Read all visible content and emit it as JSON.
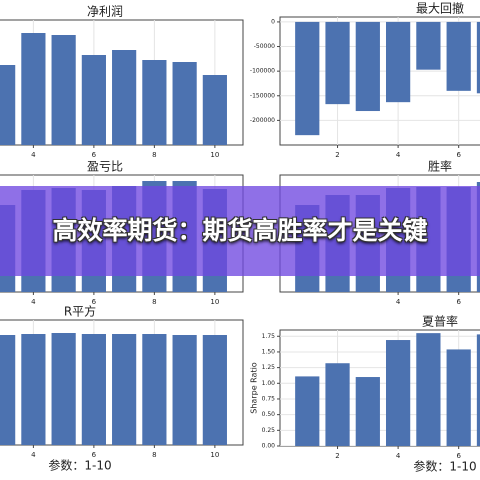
{
  "banner": "高效率期货：期货高胜率才是关键",
  "chart_data": [
    {
      "type": "bar",
      "title": "净利润",
      "x": [
        3,
        4,
        5,
        6,
        7,
        8,
        9,
        10
      ],
      "values": [
        80,
        112,
        110,
        90,
        95,
        85,
        83,
        70
      ],
      "color": "#4c72b0",
      "xlim": [
        2.83,
        10.93
      ],
      "ylim": [
        0,
        125
      ],
      "xticks": [
        4,
        6,
        8,
        10
      ]
    },
    {
      "type": "bar",
      "title": "最大回撤",
      "x": [
        1,
        2,
        3,
        4,
        5,
        6,
        7
      ],
      "values": [
        -230000,
        -167000,
        -181000,
        -163000,
        -97000,
        -140000,
        -145000
      ],
      "color": "#4c72b0",
      "xlim": [
        0.1,
        6.77
      ],
      "ylim": [
        -250000,
        10000
      ],
      "xticks": [
        2,
        4,
        6
      ],
      "yticks": [
        0,
        -50000,
        -100000,
        -150000,
        -200000
      ]
    },
    {
      "type": "bar",
      "title": "盈亏比",
      "x": [
        3,
        4,
        5,
        6,
        7,
        8,
        9,
        10
      ],
      "values": [
        87,
        102,
        104,
        102,
        106,
        111,
        111,
        103
      ],
      "color": "#4c72b0",
      "xlim": [
        2.83,
        10.93
      ],
      "ylim": [
        0,
        117
      ],
      "xticks": [
        4,
        6,
        8,
        10
      ]
    },
    {
      "type": "bar",
      "title": "胜率",
      "x": [
        1,
        2,
        3,
        4,
        5,
        6,
        7
      ],
      "values": [
        87,
        97,
        97,
        104,
        105,
        105,
        110
      ],
      "color": "#4c72b0",
      "xlim": [
        0.1,
        6.77
      ],
      "ylim": [
        0,
        117
      ],
      "xticks": [
        4,
        6
      ]
    },
    {
      "type": "bar",
      "title": "R平方",
      "x": [
        3,
        4,
        5,
        6,
        7,
        8,
        9,
        10
      ],
      "values": [
        110,
        111,
        112,
        111,
        111,
        111,
        110,
        110
      ],
      "color": "#4c72b0",
      "xlim": [
        2.83,
        10.93
      ],
      "ylim": [
        0,
        125
      ],
      "xticks": [
        4,
        6,
        8,
        10
      ],
      "xlabel": "参数：1-10"
    },
    {
      "type": "bar",
      "title": "夏普率",
      "x": [
        1,
        2,
        3,
        4,
        5,
        6,
        7
      ],
      "values": [
        1.11,
        1.32,
        1.1,
        1.69,
        1.8,
        1.54,
        1.78
      ],
      "color": "#4c72b0",
      "xlim": [
        0.1,
        6.77
      ],
      "ylim": [
        0,
        1.85
      ],
      "xticks": [
        2,
        4,
        6
      ],
      "yticks": [
        {
          "value": 0,
          "label": "0.00"
        },
        {
          "value": 0.25,
          "label": "0.25"
        },
        {
          "value": 0.5,
          "label": "0.50"
        },
        {
          "value": 0.75,
          "label": "0.75"
        },
        {
          "value": 1,
          "label": "1.00"
        },
        {
          "value": 1.25,
          "label": "1.25"
        },
        {
          "value": 1.5,
          "label": "1.50"
        },
        {
          "value": 1.75,
          "label": "1.75"
        }
      ],
      "ylabel": "Sharpe Ratio",
      "xlabel": "参数：1-10"
    }
  ]
}
